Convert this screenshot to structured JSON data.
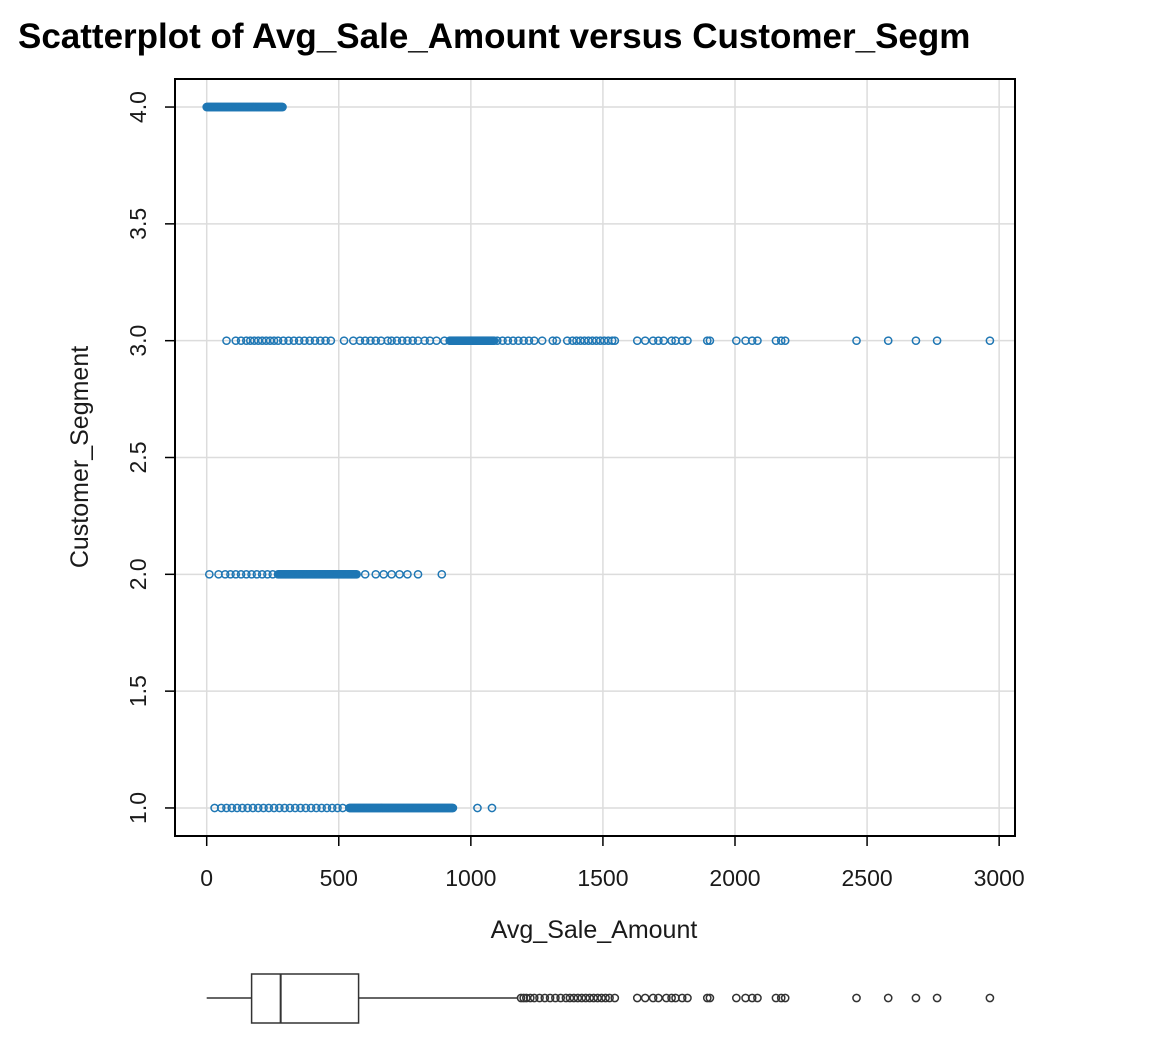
{
  "chart_data": {
    "type": "scatter",
    "title": "Scatterplot of Avg_Sale_Amount versus Customer_Segm",
    "xlabel": "Avg_Sale_Amount",
    "ylabel": "Customer_Segment",
    "xlim": [
      -120,
      3060
    ],
    "ylim": [
      0.88,
      4.12
    ],
    "xticks": [
      "0",
      "500",
      "1000",
      "1500",
      "2000",
      "2500",
      "3000"
    ],
    "yticks": [
      "1.0",
      "1.5",
      "2.0",
      "2.5",
      "3.0",
      "3.5",
      "4.0"
    ],
    "grid": true,
    "marker_color": "#1f77b4",
    "boxplot_color": "#333333",
    "series": [
      {
        "y": 4.0,
        "dense_range": [
          0,
          290
        ],
        "x": []
      },
      {
        "y": 3.0,
        "dense_range": [
          920,
          1090
        ],
        "x": [
          75,
          110,
          130,
          150,
          165,
          180,
          195,
          210,
          225,
          240,
          255,
          270,
          290,
          310,
          330,
          350,
          370,
          390,
          410,
          430,
          450,
          470,
          520,
          555,
          580,
          600,
          620,
          640,
          660,
          685,
          700,
          720,
          740,
          760,
          780,
          800,
          825,
          845,
          870,
          900,
          1100,
          1120,
          1140,
          1160,
          1180,
          1200,
          1220,
          1240,
          1270,
          1310,
          1325,
          1365,
          1385,
          1400,
          1415,
          1430,
          1445,
          1460,
          1475,
          1490,
          1505,
          1520,
          1535,
          1545,
          1630,
          1660,
          1690,
          1710,
          1730,
          1760,
          1775,
          1800,
          1820,
          1895,
          1905,
          2005,
          2040,
          2065,
          2085,
          2155,
          2175,
          2190,
          2460,
          2580,
          2685,
          2765,
          2965
        ]
      },
      {
        "y": 2.0,
        "dense_range": [
          270,
          570
        ],
        "x": [
          10,
          45,
          70,
          90,
          110,
          130,
          150,
          170,
          190,
          210,
          230,
          250,
          600,
          640,
          670,
          700,
          730,
          760,
          800,
          890
        ]
      },
      {
        "y": 1.0,
        "dense_range": [
          540,
          935
        ],
        "x": [
          30,
          55,
          75,
          95,
          115,
          135,
          155,
          175,
          195,
          215,
          235,
          255,
          275,
          295,
          315,
          335,
          355,
          375,
          395,
          415,
          435,
          455,
          475,
          495,
          515,
          1025,
          1080
        ]
      }
    ],
    "boxplot": {
      "min": 0,
      "q1": 170,
      "median": 280,
      "q3": 575,
      "whisker_high": 1180,
      "outliers": [
        1190,
        1200,
        1210,
        1225,
        1240,
        1260,
        1280,
        1300,
        1320,
        1340,
        1360,
        1375,
        1390,
        1405,
        1420,
        1435,
        1450,
        1465,
        1480,
        1495,
        1510,
        1525,
        1545,
        1630,
        1660,
        1690,
        1710,
        1740,
        1760,
        1775,
        1800,
        1820,
        1895,
        1905,
        2005,
        2040,
        2065,
        2085,
        2155,
        2175,
        2190,
        2460,
        2580,
        2685,
        2765,
        2965
      ]
    }
  }
}
